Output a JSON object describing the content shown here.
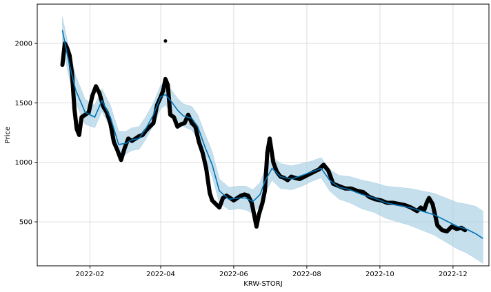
{
  "chart_data": {
    "type": "line",
    "title": "",
    "xlabel": "KRW-STORJ",
    "ylabel": "Price",
    "x_range": [
      "2021-12-19",
      "2022-12-31"
    ],
    "ylim": [
      130,
      2330
    ],
    "grid": true,
    "x_ticks": [
      {
        "date": "2022-02-01",
        "label": "2022-02"
      },
      {
        "date": "2022-04-01",
        "label": "2022-04"
      },
      {
        "date": "2022-06-01",
        "label": "2022-06"
      },
      {
        "date": "2022-08-01",
        "label": "2022-08"
      },
      {
        "date": "2022-10-01",
        "label": "2022-10"
      },
      {
        "date": "2022-12-01",
        "label": "2022-12"
      }
    ],
    "y_ticks": [
      {
        "value": 500,
        "label": "500"
      },
      {
        "value": 1000,
        "label": "1000"
      },
      {
        "value": 1500,
        "label": "1500"
      },
      {
        "value": 2000,
        "label": "2000"
      }
    ],
    "colors": {
      "actual": "#000000",
      "forecast": "#0072B2",
      "interval": "#A6CEE3",
      "grid": "#dddddd",
      "axis": "#000000"
    },
    "series": [
      {
        "role": "forecast",
        "x": [
          "2022-01-09",
          "2022-01-14",
          "2022-01-20",
          "2022-01-28",
          "2022-02-05",
          "2022-02-11",
          "2022-02-18",
          "2022-02-25",
          "2022-03-03",
          "2022-03-08",
          "2022-03-14",
          "2022-03-20",
          "2022-03-26",
          "2022-04-01",
          "2022-04-05",
          "2022-04-10",
          "2022-04-15",
          "2022-04-20",
          "2022-04-27",
          "2022-05-02",
          "2022-05-08",
          "2022-05-14",
          "2022-05-20",
          "2022-05-28",
          "2022-06-05",
          "2022-06-11",
          "2022-06-17",
          "2022-06-23",
          "2022-06-27",
          "2022-07-03",
          "2022-07-10",
          "2022-07-19",
          "2022-07-28",
          "2022-08-05",
          "2022-08-13",
          "2022-08-20",
          "2022-08-28",
          "2022-09-06",
          "2022-09-16",
          "2022-09-26",
          "2022-10-06",
          "2022-10-16",
          "2022-10-26",
          "2022-11-05",
          "2022-11-15",
          "2022-11-25",
          "2022-12-05",
          "2022-12-12",
          "2022-12-20",
          "2022-12-26"
        ],
        "y": [
          2110,
          1860,
          1610,
          1420,
          1380,
          1520,
          1380,
          1150,
          1160,
          1190,
          1200,
          1290,
          1400,
          1550,
          1570,
          1510,
          1440,
          1390,
          1370,
          1300,
          1130,
          980,
          760,
          690,
          700,
          700,
          670,
          730,
          840,
          950,
          880,
          860,
          890,
          920,
          950,
          850,
          790,
          770,
          730,
          700,
          660,
          640,
          620,
          590,
          560,
          510,
          460,
          440,
          400,
          360
        ],
        "lower": [
          1990,
          1740,
          1500,
          1320,
          1290,
          1430,
          1290,
          1060,
          1070,
          1100,
          1110,
          1200,
          1310,
          1450,
          1480,
          1420,
          1350,
          1300,
          1270,
          1200,
          1030,
          880,
          660,
          600,
          610,
          600,
          570,
          630,
          740,
          850,
          780,
          770,
          800,
          840,
          870,
          760,
          690,
          660,
          610,
          580,
          530,
          500,
          470,
          430,
          390,
          330,
          270,
          240,
          190,
          150
        ],
        "upper": [
          2220,
          1980,
          1730,
          1530,
          1480,
          1620,
          1480,
          1260,
          1260,
          1290,
          1300,
          1390,
          1500,
          1650,
          1670,
          1610,
          1540,
          1490,
          1470,
          1400,
          1240,
          1090,
          860,
          790,
          800,
          800,
          770,
          830,
          940,
          1050,
          990,
          970,
          990,
          1010,
          1040,
          940,
          890,
          880,
          850,
          830,
          800,
          790,
          780,
          760,
          740,
          700,
          660,
          650,
          630,
          590
        ]
      },
      {
        "role": "actual",
        "x": [
          "2022-01-09",
          "2022-01-11",
          "2022-01-13",
          "2022-01-15",
          "2022-01-17",
          "2022-01-19",
          "2022-01-21",
          "2022-01-23",
          "2022-01-25",
          "2022-01-28",
          "2022-01-31",
          "2022-02-03",
          "2022-02-06",
          "2022-02-09",
          "2022-02-12",
          "2022-02-15",
          "2022-02-18",
          "2022-02-21",
          "2022-02-24",
          "2022-02-27",
          "2022-03-02",
          "2022-03-05",
          "2022-03-08",
          "2022-03-11",
          "2022-03-14",
          "2022-03-17",
          "2022-03-20",
          "2022-03-23",
          "2022-03-26",
          "2022-03-29",
          "2022-04-01",
          "2022-04-03",
          "2022-04-05",
          "2022-04-07",
          "2022-04-09",
          "2022-04-12",
          "2022-04-15",
          "2022-04-18",
          "2022-04-21",
          "2022-04-24",
          "2022-04-27",
          "2022-04-30",
          "2022-05-03",
          "2022-05-06",
          "2022-05-09",
          "2022-05-12",
          "2022-05-14",
          "2022-05-17",
          "2022-05-20",
          "2022-05-23",
          "2022-05-26",
          "2022-05-29",
          "2022-06-01",
          "2022-06-04",
          "2022-06-07",
          "2022-06-10",
          "2022-06-13",
          "2022-06-16",
          "2022-06-18",
          "2022-06-20",
          "2022-06-22",
          "2022-06-25",
          "2022-06-27",
          "2022-06-29",
          "2022-07-01",
          "2022-07-04",
          "2022-07-07",
          "2022-07-10",
          "2022-07-13",
          "2022-07-16",
          "2022-07-19",
          "2022-07-22",
          "2022-07-26",
          "2022-07-30",
          "2022-08-03",
          "2022-08-07",
          "2022-08-11",
          "2022-08-15",
          "2022-08-19",
          "2022-08-23",
          "2022-08-28",
          "2022-09-02",
          "2022-09-07",
          "2022-09-12",
          "2022-09-17",
          "2022-09-22",
          "2022-09-27",
          "2022-10-02",
          "2022-10-07",
          "2022-10-12",
          "2022-10-17",
          "2022-10-22",
          "2022-10-27",
          "2022-11-01",
          "2022-11-04",
          "2022-11-07",
          "2022-11-09",
          "2022-11-11",
          "2022-11-14",
          "2022-11-18",
          "2022-11-22",
          "2022-11-26",
          "2022-11-30",
          "2022-12-04",
          "2022-12-08",
          "2022-12-11"
        ],
        "y": [
          1820,
          2000,
          1960,
          1900,
          1750,
          1450,
          1280,
          1230,
          1380,
          1400,
          1420,
          1560,
          1640,
          1580,
          1470,
          1420,
          1330,
          1170,
          1100,
          1020,
          1120,
          1200,
          1180,
          1200,
          1220,
          1230,
          1270,
          1300,
          1330,
          1480,
          1550,
          1600,
          1700,
          1650,
          1400,
          1380,
          1300,
          1320,
          1330,
          1400,
          1330,
          1300,
          1170,
          1080,
          950,
          740,
          680,
          650,
          620,
          700,
          720,
          700,
          680,
          700,
          720,
          730,
          720,
          660,
          560,
          460,
          560,
          660,
          760,
          1080,
          1200,
          1000,
          920,
          880,
          870,
          850,
          880,
          870,
          860,
          880,
          900,
          920,
          940,
          980,
          930,
          820,
          800,
          780,
          780,
          760,
          750,
          710,
          690,
          680,
          660,
          660,
          650,
          640,
          620,
          590,
          620,
          600,
          660,
          700,
          650,
          470,
          430,
          420,
          460,
          440,
          450,
          430
        ]
      },
      {
        "role": "actual-outlier",
        "x": [
          "2022-04-05"
        ],
        "y": [
          2020
        ]
      }
    ]
  }
}
